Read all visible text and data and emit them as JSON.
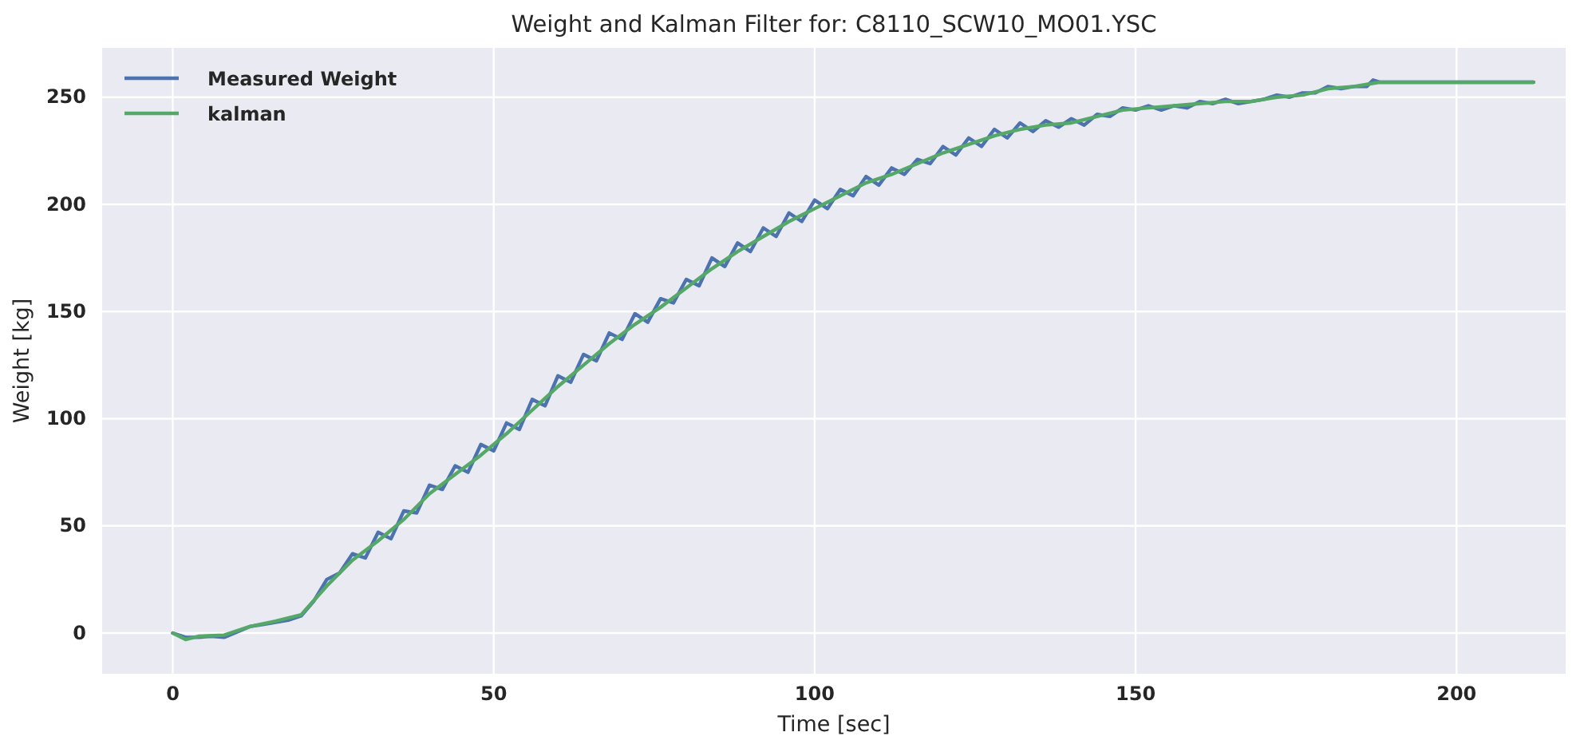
{
  "chart_data": {
    "type": "line",
    "title": "Weight and Kalman Filter for: C8110_SCW10_MO01.YSC",
    "xlabel": "Time [sec]",
    "ylabel": "Weight [kg]",
    "xlim": [
      -11,
      217
    ],
    "ylim": [
      -19,
      273
    ],
    "xticks": [
      0,
      50,
      100,
      150,
      200
    ],
    "yticks": [
      0,
      50,
      100,
      150,
      200,
      250
    ],
    "grid": true,
    "legend": "top left",
    "line_style": "solid",
    "marker": "none",
    "series": [
      {
        "name": "Measured Weight",
        "color": "#4c72b0",
        "x": [
          0,
          2,
          4,
          6,
          8,
          10,
          12,
          14,
          16,
          18,
          20,
          22,
          24,
          26,
          28,
          30,
          32,
          34,
          36,
          38,
          40,
          42,
          44,
          46,
          48,
          50,
          52,
          54,
          56,
          58,
          60,
          62,
          64,
          66,
          68,
          70,
          72,
          74,
          76,
          78,
          80,
          82,
          84,
          86,
          88,
          90,
          92,
          94,
          96,
          98,
          100,
          102,
          104,
          106,
          108,
          110,
          112,
          114,
          116,
          118,
          120,
          122,
          124,
          126,
          128,
          130,
          132,
          134,
          136,
          138,
          140,
          142,
          144,
          146,
          148,
          150,
          152,
          154,
          156,
          158,
          160,
          162,
          164,
          166,
          168,
          170,
          172,
          174,
          176,
          178,
          180,
          182,
          184,
          186,
          187,
          188,
          212
        ],
        "values": [
          0,
          -2,
          -2,
          -1.5,
          -2,
          0.5,
          3,
          4,
          5,
          6,
          8,
          15,
          25,
          28,
          37,
          35,
          47,
          44,
          57,
          56,
          69,
          67,
          78,
          75,
          88,
          85,
          98,
          95,
          109,
          106,
          120,
          117,
          130,
          127,
          140,
          137,
          149,
          145,
          156,
          154,
          165,
          162,
          175,
          171,
          182,
          178,
          189,
          185,
          196,
          192,
          202,
          198,
          207,
          204,
          213,
          209,
          217,
          214,
          221,
          219,
          227,
          223,
          231,
          227,
          235,
          231,
          238,
          234,
          239,
          236,
          240,
          237,
          242,
          241,
          245,
          244,
          246,
          244,
          246,
          245,
          248,
          247,
          249,
          247,
          248,
          249,
          251,
          250,
          252,
          252,
          255,
          254,
          255,
          255,
          258,
          257,
          257
        ]
      },
      {
        "name": "kalman",
        "color": "#55a868",
        "x": [
          0,
          2,
          4,
          8,
          12,
          16,
          20,
          24,
          28,
          32,
          36,
          40,
          44,
          48,
          52,
          56,
          60,
          64,
          68,
          72,
          76,
          80,
          84,
          88,
          92,
          96,
          100,
          104,
          108,
          112,
          116,
          120,
          124,
          128,
          132,
          136,
          140,
          144,
          148,
          152,
          156,
          160,
          164,
          168,
          172,
          176,
          180,
          184,
          188,
          212
        ],
        "values": [
          0,
          -3,
          -1.5,
          -1,
          3,
          5.5,
          8.5,
          22,
          34,
          43,
          53,
          65,
          74,
          83,
          93,
          104,
          115,
          125,
          135,
          144,
          152,
          161,
          170,
          178,
          185,
          192,
          198,
          204,
          210,
          214,
          219,
          224,
          228,
          232,
          235,
          237,
          238,
          241,
          244,
          245,
          246,
          247,
          248,
          248,
          250,
          251,
          254,
          255,
          257,
          257
        ]
      }
    ]
  }
}
